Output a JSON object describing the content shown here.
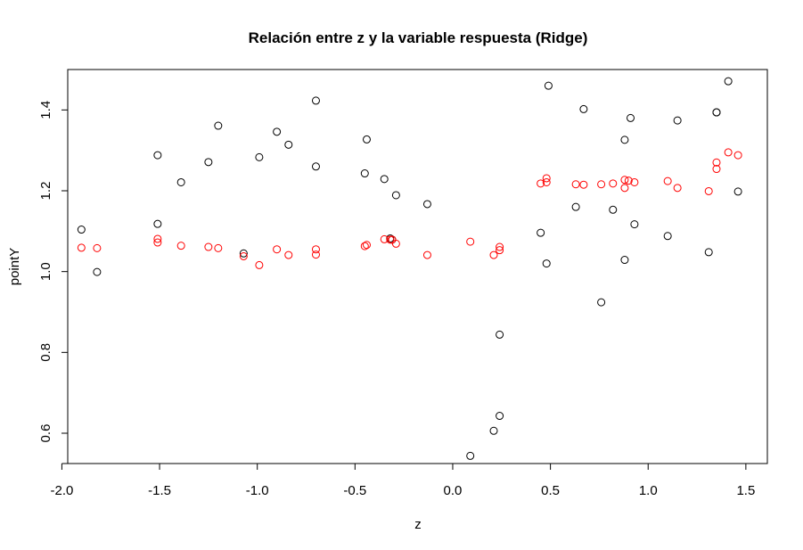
{
  "chart_data": {
    "type": "scatter",
    "title": "Relación entre z y la variable respuesta (Ridge)",
    "xlabel": "z",
    "ylabel": "pointY",
    "xlim": [
      -1.97,
      1.61
    ],
    "ylim": [
      0.525,
      1.5
    ],
    "x_ticks": [
      -2.0,
      -1.5,
      -1.0,
      -0.5,
      0.0,
      0.5,
      1.0,
      1.5
    ],
    "x_tick_labels": [
      "-2.0",
      "-1.5",
      "-1.0",
      "-0.5",
      "0.0",
      "0.5",
      "1.0",
      "1.5"
    ],
    "y_ticks": [
      0.6,
      0.8,
      1.0,
      1.2,
      1.4
    ],
    "y_tick_labels": [
      "0.6",
      "0.8",
      "1.0",
      "1.2",
      "1.4"
    ],
    "grid": false,
    "legend": "none",
    "marker": "open-circle",
    "series": [
      {
        "color": "#000000",
        "points": [
          [
            -1.9,
            1.104
          ],
          [
            -1.82,
            0.999
          ],
          [
            -1.51,
            1.288
          ],
          [
            -1.51,
            1.118
          ],
          [
            -1.39,
            1.221
          ],
          [
            -1.25,
            1.271
          ],
          [
            -1.2,
            1.361
          ],
          [
            -1.07,
            1.045
          ],
          [
            -0.99,
            1.283
          ],
          [
            -0.9,
            1.346
          ],
          [
            -0.84,
            1.314
          ],
          [
            -0.7,
            1.423
          ],
          [
            -0.7,
            1.26
          ],
          [
            -0.44,
            1.327
          ],
          [
            -0.45,
            1.243
          ],
          [
            -0.35,
            1.229
          ],
          [
            -0.32,
            1.082
          ],
          [
            -0.31,
            1.079
          ],
          [
            -0.29,
            1.189
          ],
          [
            -0.13,
            1.167
          ],
          [
            0.09,
            0.544
          ],
          [
            0.21,
            0.606
          ],
          [
            0.24,
            0.844
          ],
          [
            0.24,
            0.643
          ],
          [
            0.45,
            1.096
          ],
          [
            0.48,
            1.02
          ],
          [
            0.49,
            1.46
          ],
          [
            0.63,
            1.16
          ],
          [
            0.67,
            1.402
          ],
          [
            0.76,
            0.924
          ],
          [
            0.82,
            1.153
          ],
          [
            0.88,
            1.326
          ],
          [
            0.88,
            1.029
          ],
          [
            0.91,
            1.38
          ],
          [
            0.93,
            1.117
          ],
          [
            1.1,
            1.088
          ],
          [
            1.15,
            1.374
          ],
          [
            1.31,
            1.048
          ],
          [
            1.35,
            1.394
          ],
          [
            1.35,
            1.394
          ],
          [
            1.41,
            1.471
          ],
          [
            1.46,
            1.198
          ]
        ]
      },
      {
        "color": "#ff0000",
        "points": [
          [
            -1.9,
            1.059
          ],
          [
            -1.82,
            1.058
          ],
          [
            -1.51,
            1.081
          ],
          [
            -1.51,
            1.072
          ],
          [
            -1.39,
            1.064
          ],
          [
            -1.25,
            1.061
          ],
          [
            -1.2,
            1.058
          ],
          [
            -1.07,
            1.038
          ],
          [
            -0.99,
            1.016
          ],
          [
            -0.9,
            1.055
          ],
          [
            -0.84,
            1.041
          ],
          [
            -0.7,
            1.055
          ],
          [
            -0.7,
            1.042
          ],
          [
            -0.44,
            1.066
          ],
          [
            -0.45,
            1.063
          ],
          [
            -0.35,
            1.08
          ],
          [
            -0.32,
            1.079
          ],
          [
            -0.31,
            1.079
          ],
          [
            -0.29,
            1.069
          ],
          [
            -0.13,
            1.041
          ],
          [
            0.09,
            1.074
          ],
          [
            0.21,
            1.041
          ],
          [
            0.24,
            1.061
          ],
          [
            0.24,
            1.053
          ],
          [
            0.45,
            1.218
          ],
          [
            0.48,
            1.231
          ],
          [
            0.48,
            1.221
          ],
          [
            0.63,
            1.216
          ],
          [
            0.67,
            1.215
          ],
          [
            0.76,
            1.216
          ],
          [
            0.82,
            1.218
          ],
          [
            0.88,
            1.227
          ],
          [
            0.88,
            1.207
          ],
          [
            0.9,
            1.225
          ],
          [
            0.93,
            1.221
          ],
          [
            1.1,
            1.224
          ],
          [
            1.15,
            1.207
          ],
          [
            1.31,
            1.199
          ],
          [
            1.35,
            1.27
          ],
          [
            1.35,
            1.254
          ],
          [
            1.41,
            1.295
          ],
          [
            1.46,
            1.288
          ]
        ]
      }
    ]
  }
}
